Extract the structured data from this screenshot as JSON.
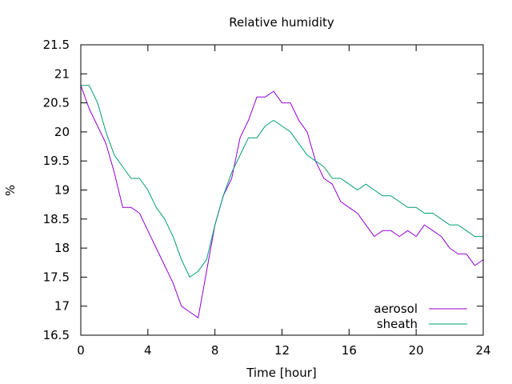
{
  "chart_data": {
    "type": "line",
    "title": "Relative humidity",
    "xlabel": "Time [hour]",
    "ylabel": "%",
    "xlim": [
      0,
      24
    ],
    "ylim": [
      16.5,
      21.5
    ],
    "x_ticks": [
      0,
      4,
      8,
      12,
      16,
      20,
      24
    ],
    "y_ticks": [
      16.5,
      17,
      17.5,
      18,
      18.5,
      19,
      19.5,
      20,
      20.5,
      21,
      21.5
    ],
    "grid": false,
    "legend_position": "bottom-right",
    "x": [
      0,
      0.5,
      1,
      1.5,
      2,
      2.5,
      3,
      3.5,
      4,
      4.5,
      5,
      5.5,
      6,
      6.5,
      7,
      7.5,
      8,
      8.5,
      9,
      9.5,
      10,
      10.5,
      11,
      11.5,
      12,
      12.5,
      13,
      13.5,
      14,
      14.5,
      15,
      15.5,
      16,
      16.5,
      17,
      17.5,
      18,
      18.5,
      19,
      19.5,
      20,
      20.5,
      21,
      21.5,
      22,
      22.5,
      23,
      23.5,
      24
    ],
    "series": [
      {
        "name": "aerosol",
        "color": "#9400d3",
        "values": [
          20.8,
          20.4,
          20.1,
          19.8,
          19.3,
          18.7,
          18.7,
          18.6,
          18.3,
          18.0,
          17.7,
          17.4,
          17.0,
          16.9,
          16.8,
          17.6,
          18.4,
          18.9,
          19.2,
          19.9,
          20.2,
          20.6,
          20.6,
          20.7,
          20.5,
          20.5,
          20.2,
          20.0,
          19.5,
          19.2,
          19.1,
          18.8,
          18.7,
          18.6,
          18.4,
          18.2,
          18.3,
          18.3,
          18.2,
          18.3,
          18.2,
          18.4,
          18.3,
          18.2,
          18.0,
          17.9,
          17.9,
          17.7,
          17.8
        ]
      },
      {
        "name": "sheath",
        "color": "#009e73",
        "values": [
          20.8,
          20.8,
          20.5,
          20.0,
          19.6,
          19.4,
          19.2,
          19.2,
          19.0,
          18.7,
          18.5,
          18.2,
          17.8,
          17.5,
          17.6,
          17.8,
          18.4,
          18.9,
          19.3,
          19.6,
          19.9,
          19.9,
          20.1,
          20.2,
          20.1,
          20.0,
          19.8,
          19.6,
          19.5,
          19.4,
          19.2,
          19.2,
          19.1,
          19.0,
          19.1,
          19.0,
          18.9,
          18.9,
          18.8,
          18.7,
          18.7,
          18.6,
          18.6,
          18.5,
          18.4,
          18.4,
          18.3,
          18.2,
          18.2
        ]
      }
    ]
  }
}
